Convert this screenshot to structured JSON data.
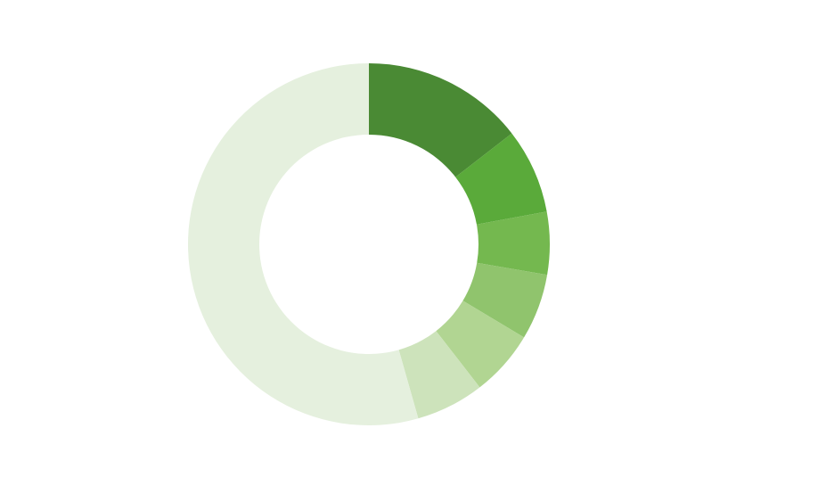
{
  "chart_data": {
    "type": "donut",
    "values": [
      14.5,
      7.6,
      5.6,
      5.9,
      5.9,
      6.1,
      54.4
    ],
    "colors": [
      "#4a8a34",
      "#5aaa3a",
      "#74b84f",
      "#90c46d",
      "#b1d592",
      "#cde3bb",
      "#e5f0de"
    ]
  }
}
